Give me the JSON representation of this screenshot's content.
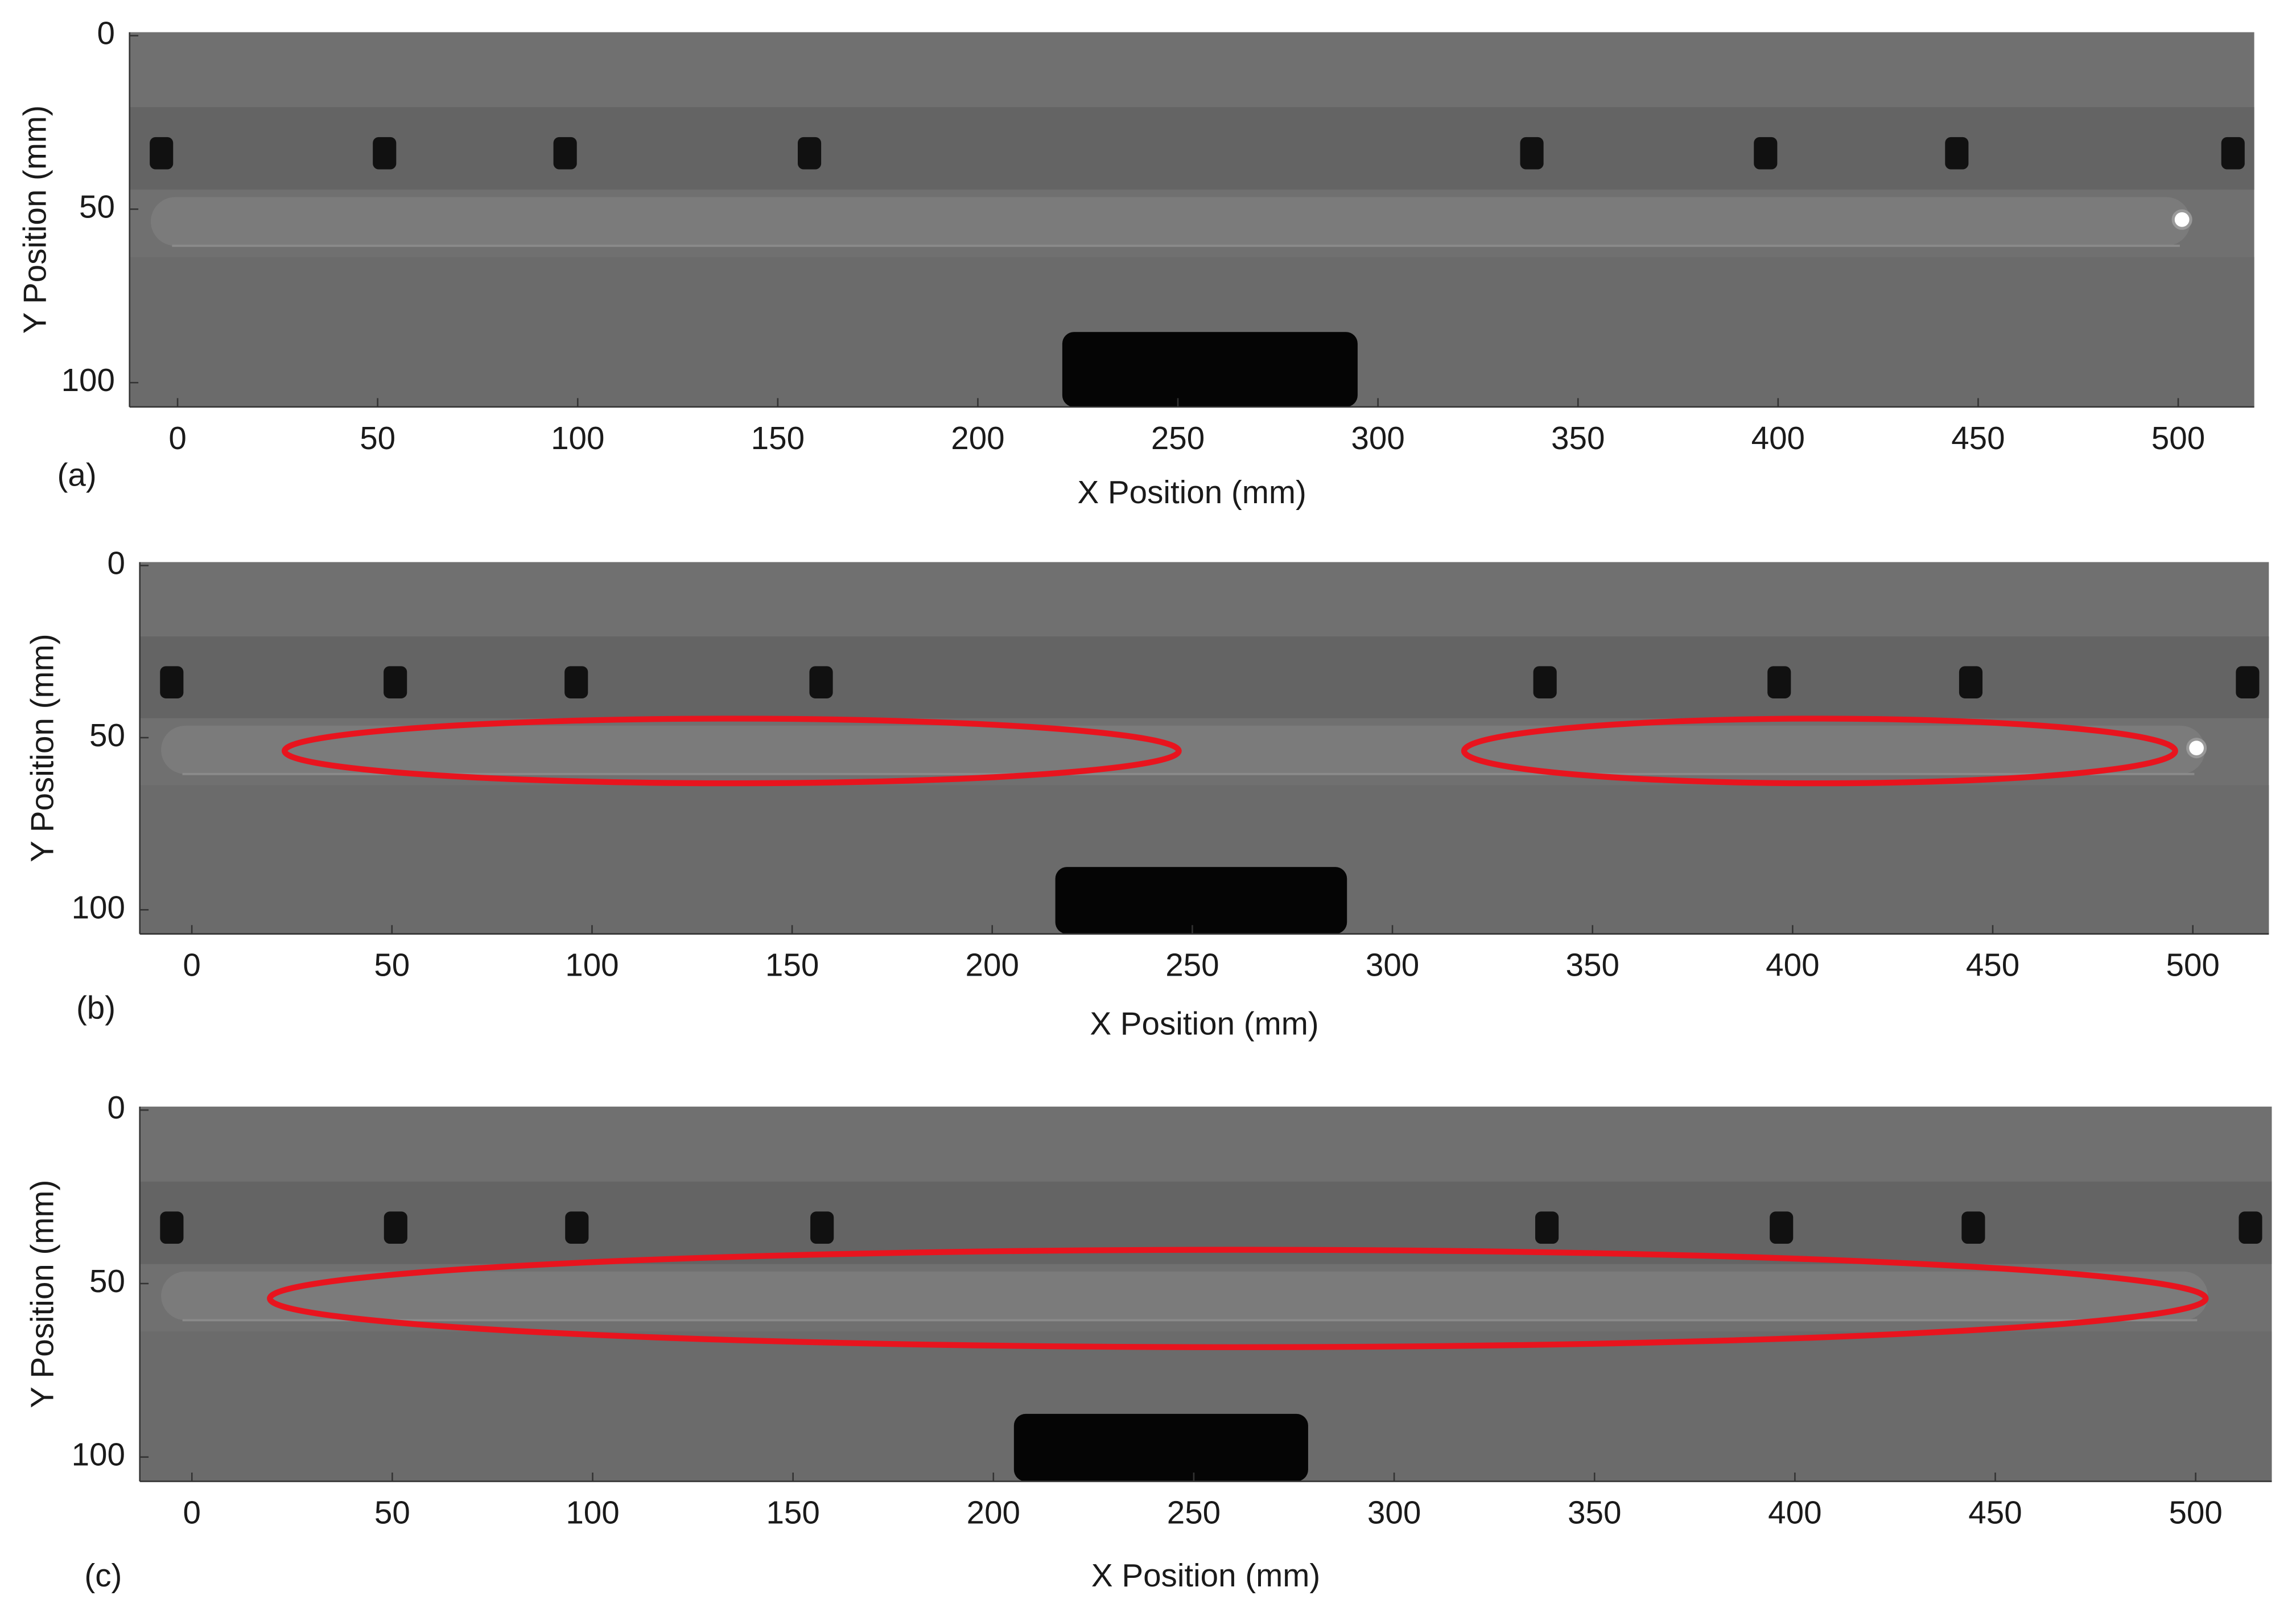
{
  "chart_data": [
    {
      "type": "image",
      "panel_label": "(a)",
      "xlabel": "X Position (mm)",
      "ylabel": "Y Position (mm)",
      "xlim": [
        -12,
        519
      ],
      "ylim": [
        -1,
        107
      ],
      "y_inverted": true,
      "xticks": [
        0,
        50,
        100,
        150,
        200,
        250,
        300,
        350,
        400,
        450,
        500
      ],
      "yticks": [
        0,
        50,
        100
      ]
    },
    {
      "type": "image",
      "panel_label": "(b)",
      "xlabel": "X Position (mm)",
      "ylabel": "Y Position (mm)",
      "xlim": [
        -13,
        519
      ],
      "ylim": [
        -1,
        107
      ],
      "y_inverted": true,
      "xticks": [
        0,
        50,
        100,
        150,
        200,
        250,
        300,
        350,
        400,
        450,
        500
      ],
      "yticks": [
        0,
        50,
        100
      ]
    },
    {
      "type": "image",
      "panel_label": "(c)",
      "xlabel": "X Position (mm)",
      "ylabel": "Y Position (mm)",
      "xlim": [
        -13,
        519
      ],
      "ylim": [
        -1,
        107
      ],
      "y_inverted": true,
      "xticks": [
        0,
        50,
        100,
        150,
        200,
        250,
        300,
        350,
        400,
        450,
        500
      ],
      "yticks": [
        0,
        50,
        100
      ]
    }
  ]
}
